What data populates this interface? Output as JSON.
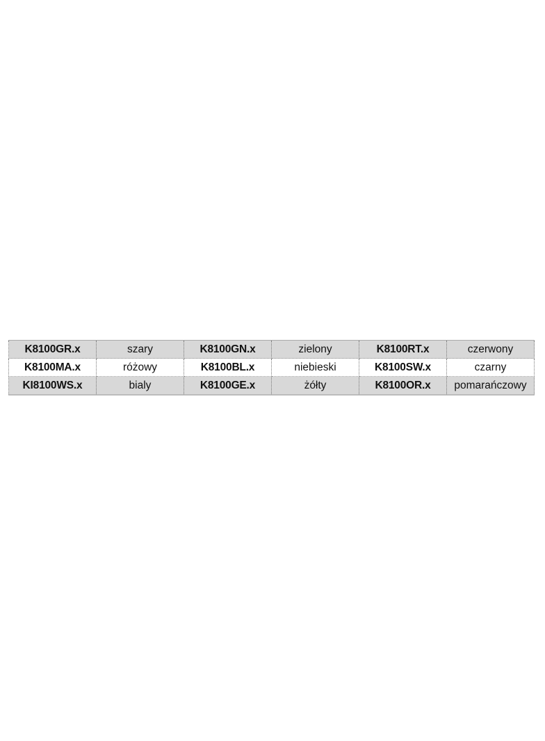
{
  "table": {
    "rows": [
      {
        "cells": [
          "K8100GR.x",
          "szary",
          "K8100GN.x",
          "zielony",
          "K8100RT.x",
          "czerwony"
        ]
      },
      {
        "cells": [
          "K8100MA.x",
          "różowy",
          "K8100BL.x",
          "niebieski",
          "K8100SW.x",
          "czarny"
        ]
      },
      {
        "cells": [
          "KI8100WS.x",
          "bialy",
          "K8100GE.x",
          "żółty",
          "K8100OR.x",
          "pomarańczowy"
        ]
      }
    ],
    "colors": {
      "shaded_row": "#d8d8d8",
      "plain_row": "#ffffff"
    }
  }
}
